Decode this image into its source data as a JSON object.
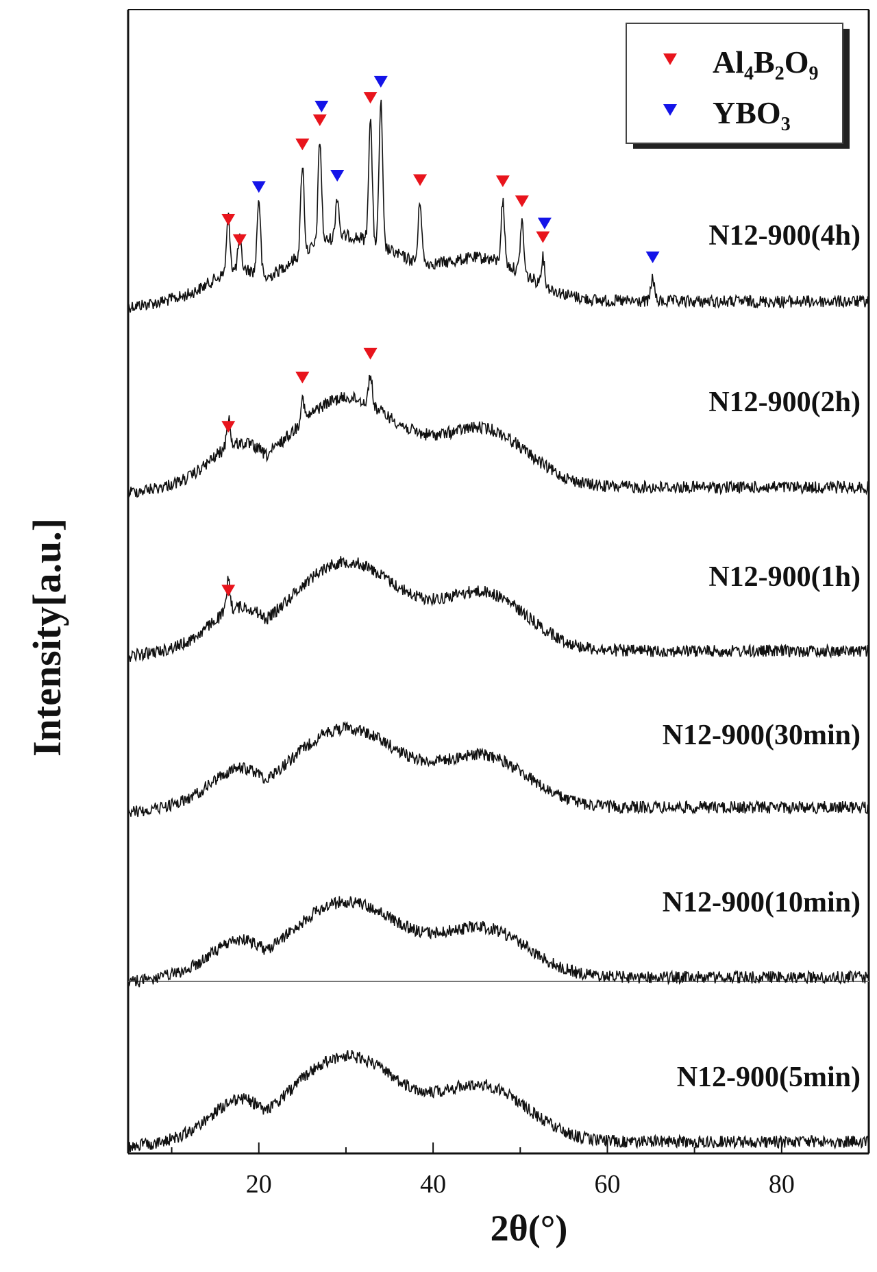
{
  "chart_data": {
    "type": "line",
    "title": "",
    "xlabel": "2θ(°)",
    "ylabel": "Intensity[a.u.]",
    "xlim": [
      5,
      90
    ],
    "xticks": [
      20,
      40,
      60,
      80
    ],
    "yticks": "none",
    "legend": {
      "position": "top-right",
      "entries": [
        {
          "label": "Al4B2O9",
          "color": "#e8141c",
          "marker": "down-triangle"
        },
        {
          "label": "YBO3",
          "color": "#1414e8",
          "marker": "down-triangle"
        }
      ]
    },
    "series": [
      {
        "name": "N12-900(4h)",
        "baseline_shape": "amorphous humps with crystalline peaks",
        "peaks": [
          {
            "x": 16.5,
            "phase": "Al4B2O9"
          },
          {
            "x": 17.8,
            "phase": "Al4B2O9"
          },
          {
            "x": 20.0,
            "phase": "YBO3"
          },
          {
            "x": 25.0,
            "phase": "Al4B2O9"
          },
          {
            "x": 27.0,
            "phase": "Al4B2O9"
          },
          {
            "x": 27.2,
            "phase": "YBO3"
          },
          {
            "x": 29.0,
            "phase": "YBO3"
          },
          {
            "x": 32.8,
            "phase": "Al4B2O9"
          },
          {
            "x": 34.0,
            "phase": "YBO3"
          },
          {
            "x": 38.5,
            "phase": "Al4B2O9"
          },
          {
            "x": 48.0,
            "phase": "Al4B2O9"
          },
          {
            "x": 50.2,
            "phase": "Al4B2O9"
          },
          {
            "x": 52.6,
            "phase": "Al4B2O9"
          },
          {
            "x": 52.8,
            "phase": "YBO3"
          },
          {
            "x": 65.2,
            "phase": "YBO3"
          }
        ]
      },
      {
        "name": "N12-900(2h)",
        "peaks": [
          {
            "x": 16.5,
            "phase": "Al4B2O9"
          },
          {
            "x": 25.0,
            "phase": "Al4B2O9"
          },
          {
            "x": 32.8,
            "phase": "Al4B2O9"
          }
        ]
      },
      {
        "name": "N12-900(1h)",
        "peaks": [
          {
            "x": 16.5,
            "phase": "Al4B2O9"
          }
        ]
      },
      {
        "name": "N12-900(30min)",
        "peaks": []
      },
      {
        "name": "N12-900(10min)",
        "peaks": []
      },
      {
        "name": "N12-900(5min)",
        "peaks": []
      }
    ]
  },
  "colors": {
    "al4b2o9": "#e8141c",
    "ybo3": "#1414e8",
    "trace": "#111111"
  }
}
